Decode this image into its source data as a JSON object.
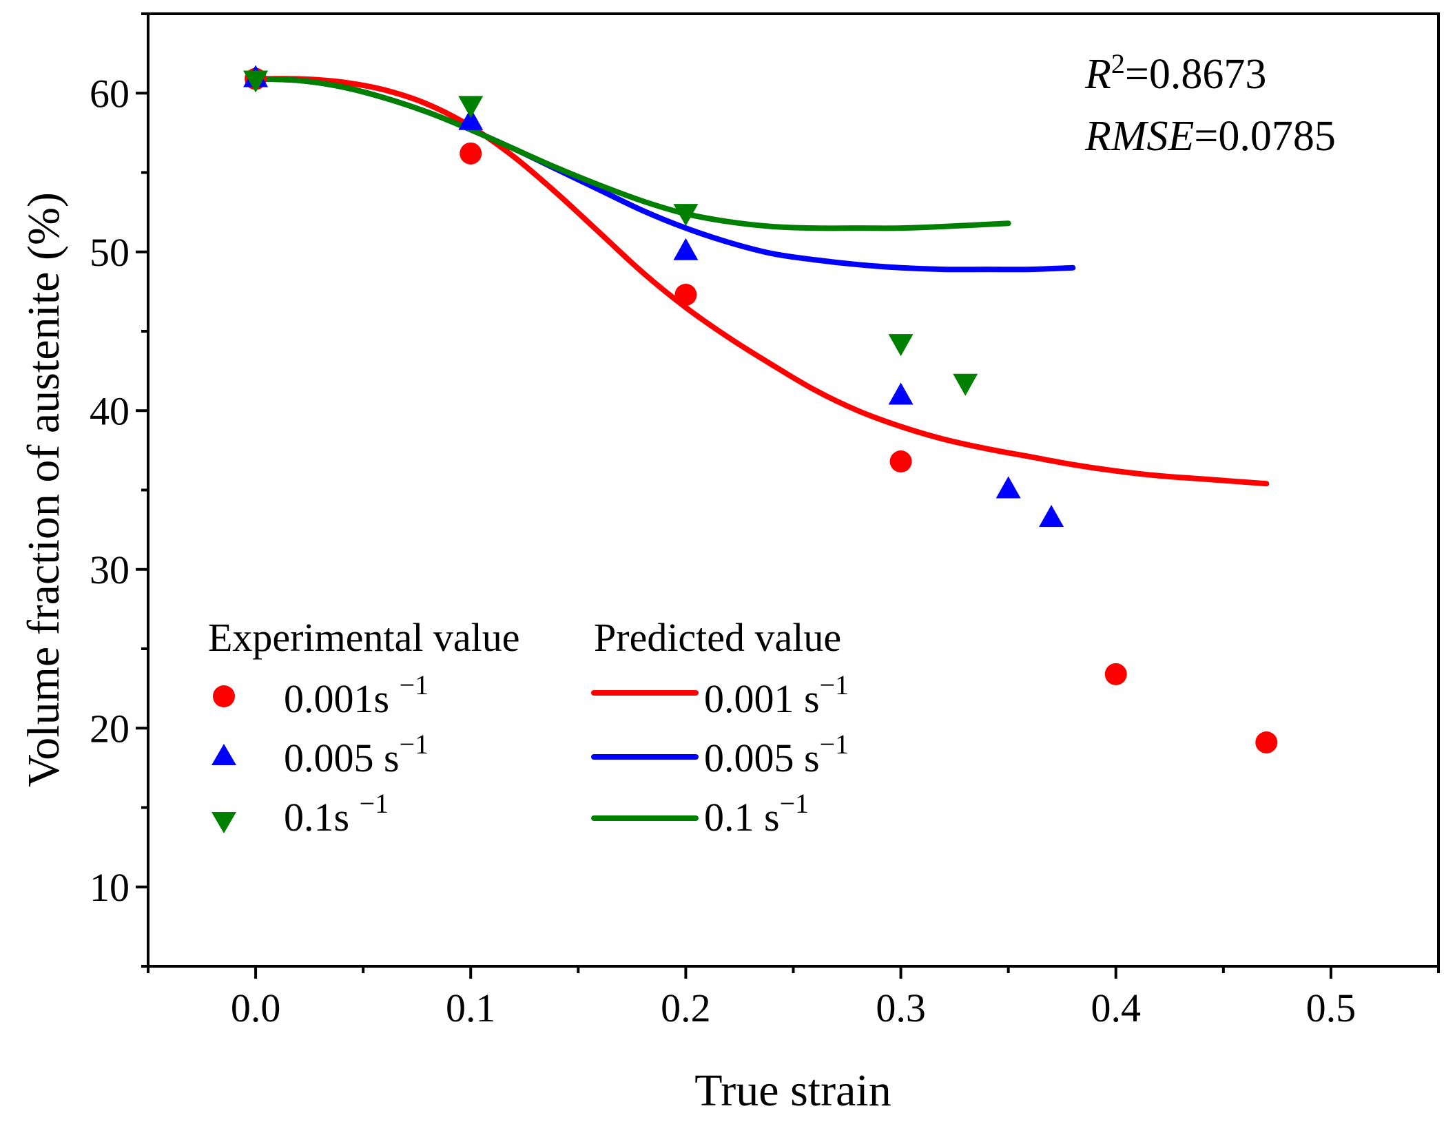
{
  "chart_data": {
    "type": "scatter",
    "title": "",
    "xlabel": "True strain",
    "ylabel": "Volume fraction of austenite (%)",
    "xlim": [
      -0.05,
      0.55
    ],
    "ylim": [
      5,
      65
    ],
    "x_ticks": [
      0.0,
      0.1,
      0.2,
      0.3,
      0.4,
      0.5
    ],
    "x_tick_labels": [
      "0.0",
      "0.1",
      "0.2",
      "0.3",
      "0.4",
      "0.5"
    ],
    "y_ticks": [
      10,
      20,
      30,
      40,
      50,
      60
    ],
    "y_tick_labels": [
      "10",
      "20",
      "30",
      "40",
      "50",
      "60"
    ],
    "grid": false,
    "legend": {
      "experimental_header": "Experimental value",
      "predicted_header": "Predicted value",
      "experimental_labels": [
        {
          "base": "0.001s ",
          "sup": "−1"
        },
        {
          "base": "0.005 s",
          "sup": "−1"
        },
        {
          "base": "0.1s ",
          "sup": "−1"
        }
      ],
      "predicted_labels": [
        {
          "base": "0.001 s",
          "sup": "−1"
        },
        {
          "base": "0.005 s",
          "sup": "−1"
        },
        {
          "base": "0.1 s",
          "sup": "−1"
        }
      ]
    },
    "stats": {
      "r2_symbol": "R",
      "r2_exp": "2",
      "r2_value": "=0.8673",
      "rmse_symbol": "RMSE",
      "rmse_value": "=0.0785"
    },
    "experimental_series": [
      {
        "name": "0.001 s-1",
        "marker": "circle",
        "color": "#ff0000",
        "x": [
          0.0,
          0.1,
          0.2,
          0.3,
          0.4,
          0.47
        ],
        "y": [
          60.9,
          56.2,
          47.3,
          36.8,
          23.4,
          19.1
        ]
      },
      {
        "name": "0.005 s-1",
        "marker": "triangle-up",
        "color": "#0000ff",
        "x": [
          0.0,
          0.1,
          0.2,
          0.3,
          0.35,
          0.37
        ],
        "y": [
          60.9,
          58.2,
          50.0,
          40.9,
          35.0,
          33.2
        ]
      },
      {
        "name": "0.1 s-1",
        "marker": "triangle-down",
        "color": "#008000",
        "x": [
          0.0,
          0.1,
          0.2,
          0.3,
          0.33
        ],
        "y": [
          60.9,
          59.3,
          52.5,
          44.3,
          41.8
        ]
      }
    ],
    "predicted_series": [
      {
        "name": "0.001 s-1",
        "color": "#ff0000",
        "x": [
          0.0,
          0.02,
          0.04,
          0.06,
          0.08,
          0.1,
          0.12,
          0.14,
          0.16,
          0.18,
          0.2,
          0.22,
          0.24,
          0.26,
          0.28,
          0.3,
          0.32,
          0.34,
          0.36,
          0.38,
          0.4,
          0.42,
          0.44,
          0.47
        ],
        "y": [
          60.9,
          60.9,
          60.7,
          60.2,
          59.3,
          57.9,
          56.0,
          53.7,
          51.2,
          48.7,
          46.5,
          44.6,
          42.9,
          41.3,
          40.0,
          39.0,
          38.2,
          37.6,
          37.1,
          36.6,
          36.2,
          35.9,
          35.7,
          35.4
        ]
      },
      {
        "name": "0.005 s-1",
        "color": "#0000ff",
        "x": [
          0.0,
          0.02,
          0.04,
          0.06,
          0.08,
          0.1,
          0.12,
          0.14,
          0.16,
          0.18,
          0.2,
          0.22,
          0.24,
          0.26,
          0.28,
          0.3,
          0.32,
          0.34,
          0.36,
          0.38
        ],
        "y": [
          60.9,
          60.8,
          60.4,
          59.7,
          58.8,
          57.7,
          56.5,
          55.2,
          53.9,
          52.6,
          51.5,
          50.6,
          49.9,
          49.5,
          49.2,
          49.0,
          48.9,
          48.9,
          48.9,
          49.0
        ]
      },
      {
        "name": "0.1 s-1",
        "color": "#008000",
        "x": [
          0.0,
          0.02,
          0.04,
          0.06,
          0.08,
          0.1,
          0.12,
          0.14,
          0.16,
          0.18,
          0.2,
          0.22,
          0.24,
          0.26,
          0.28,
          0.3,
          0.32,
          0.35
        ],
        "y": [
          60.9,
          60.8,
          60.4,
          59.7,
          58.8,
          57.7,
          56.5,
          55.3,
          54.2,
          53.2,
          52.4,
          51.9,
          51.6,
          51.5,
          51.5,
          51.5,
          51.6,
          51.8
        ]
      }
    ]
  }
}
